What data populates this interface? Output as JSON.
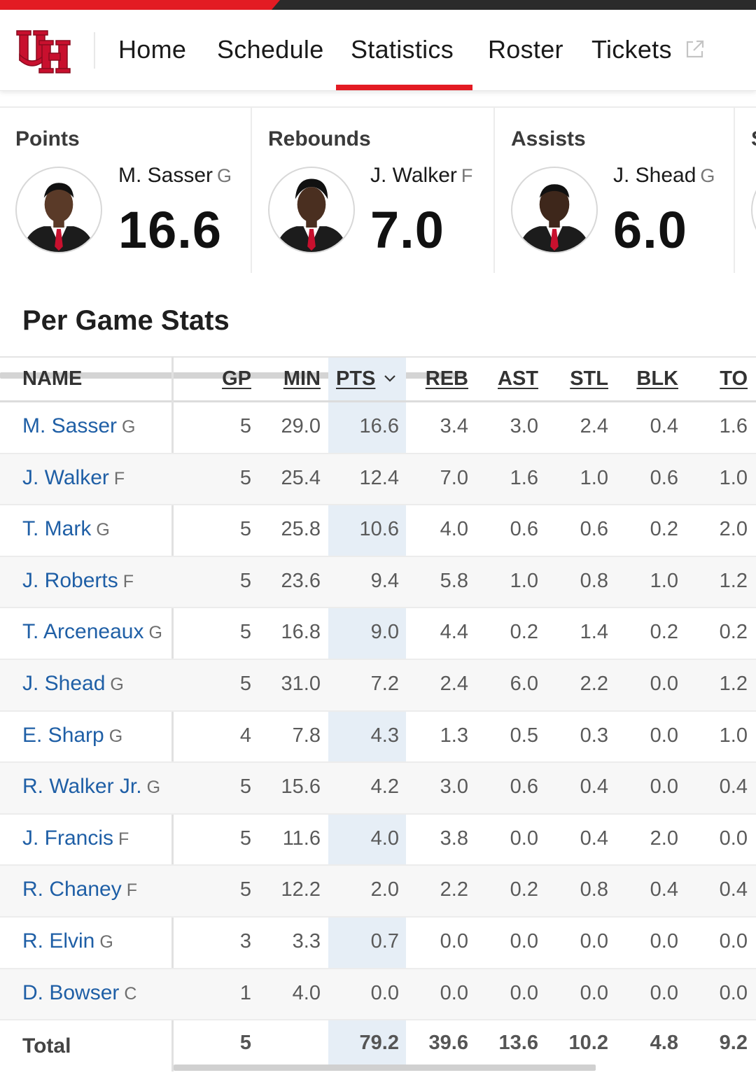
{
  "nav": {
    "items": [
      {
        "label": "Home",
        "active": false
      },
      {
        "label": "Schedule",
        "active": false
      },
      {
        "label": "Statistics",
        "active": true
      },
      {
        "label": "Roster",
        "active": false
      },
      {
        "label": "Tickets",
        "active": false,
        "icon": "external-link-icon"
      }
    ],
    "logo": "uh-logo",
    "accent_color": "#e31b23"
  },
  "leaders": [
    {
      "category": "Points",
      "name": "M. Sasser",
      "pos": "G",
      "value": "16.6"
    },
    {
      "category": "Rebounds",
      "name": "J. Walker",
      "pos": "F",
      "value": "7.0"
    },
    {
      "category": "Assists",
      "name": "J. Shead",
      "pos": "G",
      "value": "6.0"
    },
    {
      "category": "S",
      "name": "",
      "pos": "",
      "value": ""
    }
  ],
  "section": {
    "title": "Per Game Stats"
  },
  "table": {
    "headers": {
      "name": "NAME",
      "gp": "GP",
      "min": "MIN",
      "pts": "PTS",
      "reb": "REB",
      "ast": "AST",
      "stl": "STL",
      "blk": "BLK",
      "to": "TO"
    },
    "sorted_by": "PTS",
    "rows": [
      {
        "name": "M. Sasser",
        "pos": "G",
        "gp": "5",
        "min": "29.0",
        "pts": "16.6",
        "reb": "3.4",
        "ast": "3.0",
        "stl": "2.4",
        "blk": "0.4",
        "to": "1.6"
      },
      {
        "name": "J. Walker",
        "pos": "F",
        "gp": "5",
        "min": "25.4",
        "pts": "12.4",
        "reb": "7.0",
        "ast": "1.6",
        "stl": "1.0",
        "blk": "0.6",
        "to": "1.0"
      },
      {
        "name": "T. Mark",
        "pos": "G",
        "gp": "5",
        "min": "25.8",
        "pts": "10.6",
        "reb": "4.0",
        "ast": "0.6",
        "stl": "0.6",
        "blk": "0.2",
        "to": "2.0"
      },
      {
        "name": "J. Roberts",
        "pos": "F",
        "gp": "5",
        "min": "23.6",
        "pts": "9.4",
        "reb": "5.8",
        "ast": "1.0",
        "stl": "0.8",
        "blk": "1.0",
        "to": "1.2"
      },
      {
        "name": "T. Arceneaux",
        "pos": "G",
        "gp": "5",
        "min": "16.8",
        "pts": "9.0",
        "reb": "4.4",
        "ast": "0.2",
        "stl": "1.4",
        "blk": "0.2",
        "to": "0.2"
      },
      {
        "name": "J. Shead",
        "pos": "G",
        "gp": "5",
        "min": "31.0",
        "pts": "7.2",
        "reb": "2.4",
        "ast": "6.0",
        "stl": "2.2",
        "blk": "0.0",
        "to": "1.2"
      },
      {
        "name": "E. Sharp",
        "pos": "G",
        "gp": "4",
        "min": "7.8",
        "pts": "4.3",
        "reb": "1.3",
        "ast": "0.5",
        "stl": "0.3",
        "blk": "0.0",
        "to": "1.0"
      },
      {
        "name": "R. Walker Jr.",
        "pos": "G",
        "gp": "5",
        "min": "15.6",
        "pts": "4.2",
        "reb": "3.0",
        "ast": "0.6",
        "stl": "0.4",
        "blk": "0.0",
        "to": "0.4"
      },
      {
        "name": "J. Francis",
        "pos": "F",
        "gp": "5",
        "min": "11.6",
        "pts": "4.0",
        "reb": "3.8",
        "ast": "0.0",
        "stl": "0.4",
        "blk": "2.0",
        "to": "0.0"
      },
      {
        "name": "R. Chaney",
        "pos": "F",
        "gp": "5",
        "min": "12.2",
        "pts": "2.0",
        "reb": "2.2",
        "ast": "0.2",
        "stl": "0.8",
        "blk": "0.4",
        "to": "0.4"
      },
      {
        "name": "R. Elvin",
        "pos": "G",
        "gp": "3",
        "min": "3.3",
        "pts": "0.7",
        "reb": "0.0",
        "ast": "0.0",
        "stl": "0.0",
        "blk": "0.0",
        "to": "0.0"
      },
      {
        "name": "D. Bowser",
        "pos": "C",
        "gp": "1",
        "min": "4.0",
        "pts": "0.0",
        "reb": "0.0",
        "ast": "0.0",
        "stl": "0.0",
        "blk": "0.0",
        "to": "0.0"
      }
    ],
    "total": {
      "label": "Total",
      "gp": "5",
      "min": "",
      "pts": "79.2",
      "reb": "39.6",
      "ast": "13.6",
      "stl": "10.2",
      "blk": "4.8",
      "to": "9.2"
    }
  }
}
